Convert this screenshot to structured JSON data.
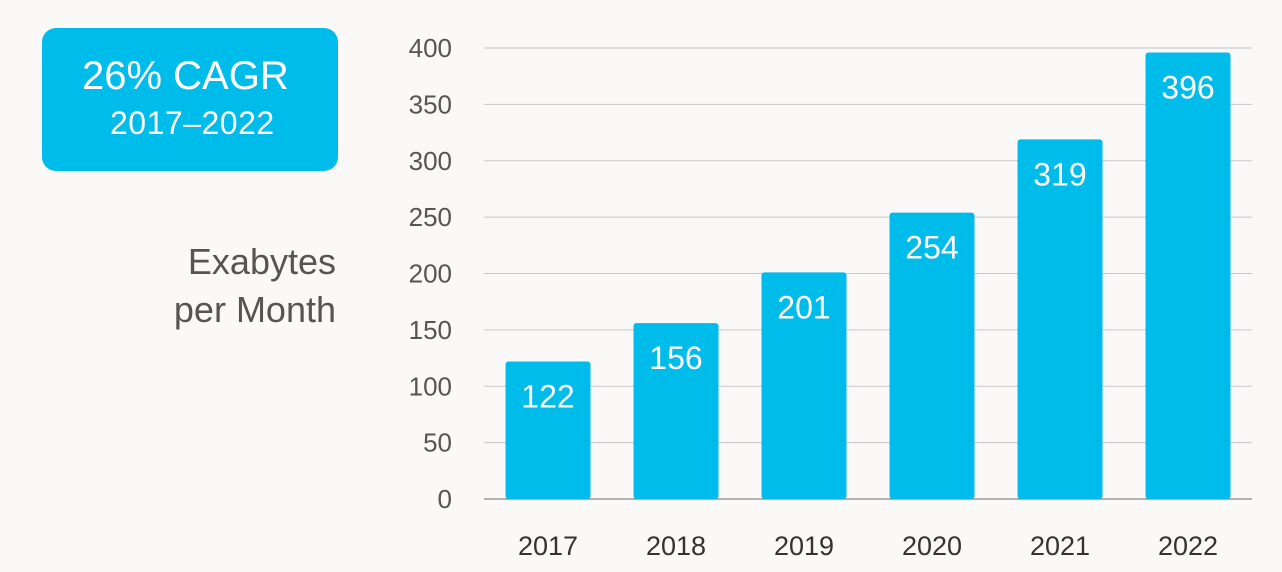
{
  "badge": {
    "title": "26% CAGR",
    "subtitle": "2017–2022",
    "color": "#00bceb"
  },
  "chart_data": {
    "type": "bar",
    "categories": [
      "2017",
      "2018",
      "2019",
      "2020",
      "2021",
      "2022"
    ],
    "values": [
      122,
      156,
      201,
      254,
      319,
      396
    ],
    "data_labels": [
      "122",
      "156",
      "201",
      "254",
      "319",
      "396"
    ],
    "ylabel_lines": [
      "Exabytes",
      "per Month"
    ],
    "xlabel": "",
    "ylim": [
      0,
      400
    ],
    "yticks": [
      0,
      50,
      100,
      150,
      200,
      250,
      300,
      350,
      400
    ],
    "ytick_labels": [
      "0",
      "50",
      "100",
      "150",
      "200",
      "250",
      "300",
      "350",
      "400"
    ],
    "grid": true,
    "bar_color": "#00bceb"
  }
}
